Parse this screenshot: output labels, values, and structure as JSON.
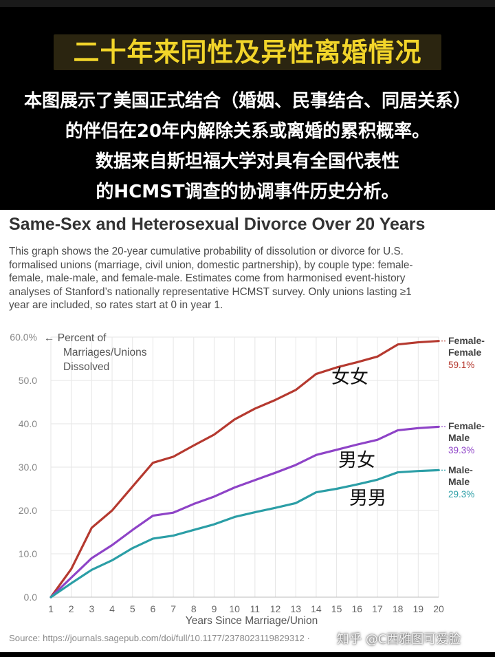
{
  "headline": "二十年来同性及异性离婚情况",
  "intro_lines": [
    "本图展示了美国正式结合（婚姻、民事结合、同居关系）",
    "的伴侣在20年内解除关系或离婚的累积概率。",
    "数据来自斯坦福大学对具有全国代表性",
    "的HCMST调查的协调事件历史分析。"
  ],
  "chart_data": {
    "type": "line",
    "title": "Same-Sex and Heterosexual Divorce Over 20 Years",
    "description_lines": [
      "This graph shows the 20-year cumulative probability of dissolution or divorce for U.S.",
      "formalised unions (marriage, civil union, domestic partnership), by couple type: female-",
      "female, male-male, and female-male. Estimates come from harmonised event-history",
      "analyses of Stanford’s nationally representative HCMST survey. Only unions lasting ≥1",
      "year are included, so rates start at 0 in year 1."
    ],
    "ylabel_lines": [
      "←  Percent of",
      "Marriages/Unions",
      "Dissolved"
    ],
    "xlabel": "Years Since Marriage/Union",
    "x": [
      1,
      2,
      3,
      4,
      5,
      6,
      7,
      8,
      9,
      10,
      11,
      12,
      13,
      14,
      15,
      16,
      17,
      18,
      19,
      20
    ],
    "xlim": [
      1,
      20
    ],
    "ylim": [
      0,
      60
    ],
    "yticks": [
      0,
      10,
      20,
      30,
      40,
      50,
      60
    ],
    "ytick_labels": [
      "0.0",
      "10.0",
      "20.0",
      "30.0",
      "40.0",
      "50.0",
      "60.0%"
    ],
    "grid": true,
    "series": [
      {
        "key": "ff",
        "name_lines": [
          "Female-",
          "Female"
        ],
        "end_label": "59.1%",
        "color": "#b5392f",
        "annotation": "女女",
        "values": [
          0,
          6.5,
          16,
          20,
          25.5,
          31,
          32.4,
          35,
          37.5,
          41,
          43.5,
          45.5,
          47.8,
          51.5,
          53,
          54.2,
          55.5,
          58.3,
          58.8,
          59.1
        ]
      },
      {
        "key": "fm",
        "name_lines": [
          "Female-",
          "Male"
        ],
        "end_label": "39.3%",
        "color": "#8e43c7",
        "annotation": "男女",
        "values": [
          0,
          4.5,
          9,
          12,
          15.5,
          18.8,
          19.5,
          21.5,
          23.2,
          25.3,
          27,
          28.7,
          30.5,
          32.8,
          34,
          35.2,
          36.3,
          38.5,
          39,
          39.3
        ]
      },
      {
        "key": "mm",
        "name_lines": [
          "Male-",
          "Male"
        ],
        "end_label": "29.3%",
        "color": "#2b9ea6",
        "annotation": "男男",
        "values": [
          0,
          3.2,
          6.3,
          8.5,
          11.3,
          13.5,
          14.2,
          15.5,
          16.8,
          18.5,
          19.6,
          20.6,
          21.7,
          24.2,
          25,
          26,
          27.1,
          28.8,
          29.1,
          29.3
        ]
      }
    ],
    "source": "Source: https://journals.sagepub.com/doi/full/10.1177/2378023119829312 ·"
  },
  "watermark": "知乎 @C西雅图可爱脸"
}
